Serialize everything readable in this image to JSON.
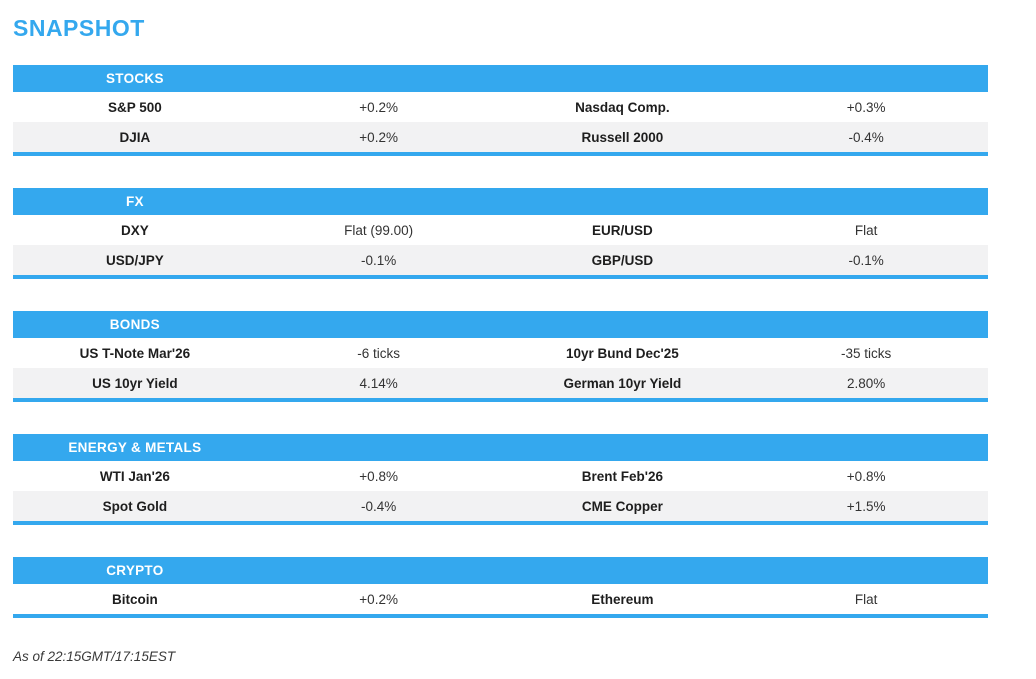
{
  "page": {
    "title": "SNAPSHOT",
    "footer": "As of 22:15GMT/17:15EST",
    "accent_color": "#34A8EE",
    "alt_row_color": "#F2F2F3"
  },
  "sections": [
    {
      "header": "STOCKS",
      "rows": [
        {
          "label1": "S&P 500",
          "value1": "+0.2%",
          "label2": "Nasdaq Comp.",
          "value2": "+0.3%"
        },
        {
          "label1": "DJIA",
          "value1": "+0.2%",
          "label2": "Russell 2000",
          "value2": "-0.4%"
        }
      ]
    },
    {
      "header": "FX",
      "rows": [
        {
          "label1": "DXY",
          "value1": "Flat (99.00)",
          "label2": "EUR/USD",
          "value2": "Flat"
        },
        {
          "label1": "USD/JPY",
          "value1": "-0.1%",
          "label2": "GBP/USD",
          "value2": "-0.1%"
        }
      ]
    },
    {
      "header": "BONDS",
      "rows": [
        {
          "label1": "US T-Note Mar'26",
          "value1": "-6 ticks",
          "label2": "10yr Bund Dec'25",
          "value2": "-35 ticks"
        },
        {
          "label1": "US 10yr Yield",
          "value1": "4.14%",
          "label2": "German 10yr Yield",
          "value2": "2.80%"
        }
      ]
    },
    {
      "header": "ENERGY & METALS",
      "rows": [
        {
          "label1": "WTI Jan'26",
          "value1": "+0.8%",
          "label2": "Brent Feb'26",
          "value2": "+0.8%"
        },
        {
          "label1": "Spot Gold",
          "value1": "-0.4%",
          "label2": "CME Copper",
          "value2": "+1.5%"
        }
      ]
    },
    {
      "header": "CRYPTO",
      "rows": [
        {
          "label1": "Bitcoin",
          "value1": "+0.2%",
          "label2": "Ethereum",
          "value2": "Flat"
        }
      ]
    }
  ]
}
